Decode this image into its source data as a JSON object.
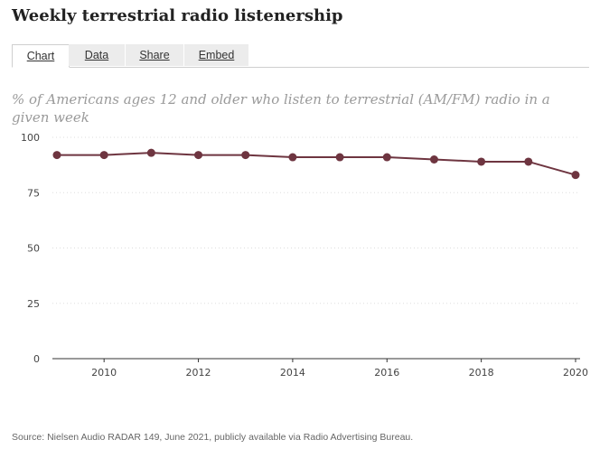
{
  "title": "Weekly terrestrial radio listenership",
  "tabs": [
    {
      "label": "Chart",
      "active": true
    },
    {
      "label": "Data",
      "active": false
    },
    {
      "label": "Share",
      "active": false
    },
    {
      "label": "Embed",
      "active": false
    }
  ],
  "source": "Source: Nielsen Audio RADAR 149, June 2021, publicly available via Radio Advertising Bureau.",
  "colors": {
    "line": "#6e3540",
    "marker": "#6e3540",
    "grid": "#dddddd",
    "axis": "#333333"
  },
  "chart_data": {
    "type": "line",
    "title": "",
    "subtitle": "% of Americans ages 12 and older who listen to terrestrial (AM/FM) radio in a given week",
    "xlabel": "",
    "ylabel": "",
    "x": [
      2009,
      2010,
      2011,
      2012,
      2013,
      2014,
      2015,
      2016,
      2017,
      2018,
      2019,
      2020
    ],
    "series": [
      {
        "values": [
          92,
          92,
          93,
          92,
          92,
          91,
          91,
          91,
          90,
          89,
          89,
          83
        ]
      }
    ],
    "xticks": [
      "2010",
      "2012",
      "2014",
      "2016",
      "2018",
      "2020"
    ],
    "yticks": [
      "0",
      "25",
      "50",
      "75",
      "100"
    ],
    "ylim": [
      0,
      100
    ],
    "xlim": [
      2009,
      2020
    ],
    "grid": "horizontal dotted",
    "legend": "none"
  }
}
